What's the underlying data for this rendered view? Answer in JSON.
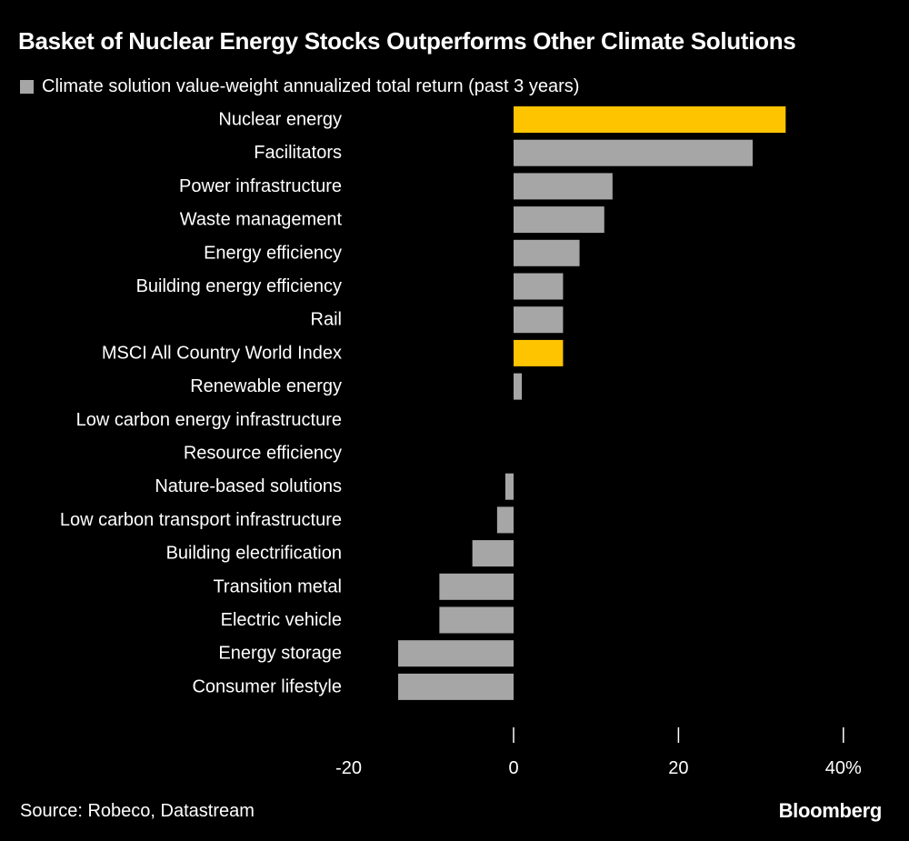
{
  "colors": {
    "background": "#000000",
    "text": "#ffffff",
    "bar_default": "#a6a6a6",
    "bar_highlight": "#ffc400"
  },
  "header": {
    "title": "Basket of Nuclear Energy Stocks Outperforms Other Climate Solutions"
  },
  "legend": {
    "label": "Climate solution value-weight annualized total return (past 3 years)"
  },
  "chart_data": {
    "type": "bar",
    "orientation": "horizontal",
    "title": "Basket of Nuclear Energy Stocks Outperforms Other Climate Solutions",
    "xlabel": "",
    "ylabel": "",
    "unit": "%",
    "xlim": [
      -20,
      40
    ],
    "grid": false,
    "series_name": "Climate solution value-weight annualized total return (past 3 years)",
    "categories": [
      "Nuclear energy",
      "Facilitators",
      "Power infrastructure",
      "Waste management",
      "Energy efficiency",
      "Building energy efficiency",
      "Rail",
      "MSCI All Country World Index",
      "Renewable energy",
      "Low carbon energy infrastructure",
      "Resource efficiency",
      "Nature-based solutions",
      "Low carbon transport infrastructure",
      "Building electrification",
      "Transition metal",
      "Electric vehicle",
      "Energy storage",
      "Consumer lifestyle"
    ],
    "values": [
      33,
      29,
      12,
      11,
      8,
      6,
      6,
      6,
      1,
      0,
      0,
      -1,
      -2,
      -5,
      -9,
      -9,
      -14,
      -14
    ],
    "highlighted": [
      "Nuclear energy",
      "MSCI All Country World Index"
    ],
    "ticks": [
      {
        "value": -20,
        "label": "-20"
      },
      {
        "value": 0,
        "label": "0"
      },
      {
        "value": 20,
        "label": "20"
      },
      {
        "value": 40,
        "label": "40%"
      }
    ]
  },
  "footer": {
    "source": "Source: Robeco, Datastream",
    "brand": "Bloomberg"
  }
}
